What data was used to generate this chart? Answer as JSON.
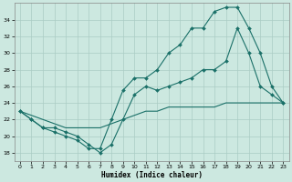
{
  "bg_color": "#cce8e0",
  "line_color": "#1a7068",
  "grid_color": "#aaccc4",
  "xlabel": "Humidex (Indice chaleur)",
  "ylim": [
    17,
    36
  ],
  "xlim": [
    -0.5,
    23.5
  ],
  "yticks": [
    18,
    20,
    22,
    24,
    26,
    28,
    30,
    32,
    34
  ],
  "xticks": [
    0,
    1,
    2,
    3,
    4,
    5,
    6,
    7,
    8,
    9,
    10,
    11,
    12,
    13,
    14,
    15,
    16,
    17,
    18,
    19,
    20,
    21,
    22,
    23
  ],
  "line1_x": [
    0,
    1,
    2,
    3,
    4,
    5,
    6,
    7,
    8,
    9,
    10,
    11,
    12,
    13,
    14,
    15,
    16,
    17,
    18,
    19,
    20,
    21,
    22,
    23
  ],
  "line1_y": [
    23,
    22,
    21,
    20.5,
    20,
    19.5,
    18.5,
    18.5,
    22,
    25.5,
    27,
    27,
    28,
    30,
    31,
    33,
    33,
    35,
    35.5,
    35.5,
    33,
    30,
    26,
    24
  ],
  "line2_x": [
    0,
    1,
    2,
    3,
    4,
    5,
    6,
    7,
    8,
    9,
    10,
    11,
    12,
    13,
    14,
    15,
    16,
    17,
    18,
    19,
    20,
    21,
    22,
    23
  ],
  "line2_y": [
    23,
    22,
    21,
    21,
    20.5,
    20,
    19,
    18,
    19,
    22,
    25,
    26,
    25.5,
    26,
    26.5,
    27,
    28,
    28,
    29,
    33,
    30,
    26,
    25,
    24
  ],
  "line3_x": [
    0,
    1,
    2,
    3,
    4,
    5,
    6,
    7,
    8,
    9,
    10,
    11,
    12,
    13,
    14,
    15,
    16,
    17,
    18,
    19,
    20,
    21,
    22,
    23
  ],
  "line3_y": [
    23,
    22.5,
    22,
    21.5,
    21,
    21,
    21,
    21,
    21.5,
    22,
    22.5,
    23,
    23,
    23.5,
    23.5,
    23.5,
    23.5,
    23.5,
    24,
    24,
    24,
    24,
    24,
    24
  ]
}
